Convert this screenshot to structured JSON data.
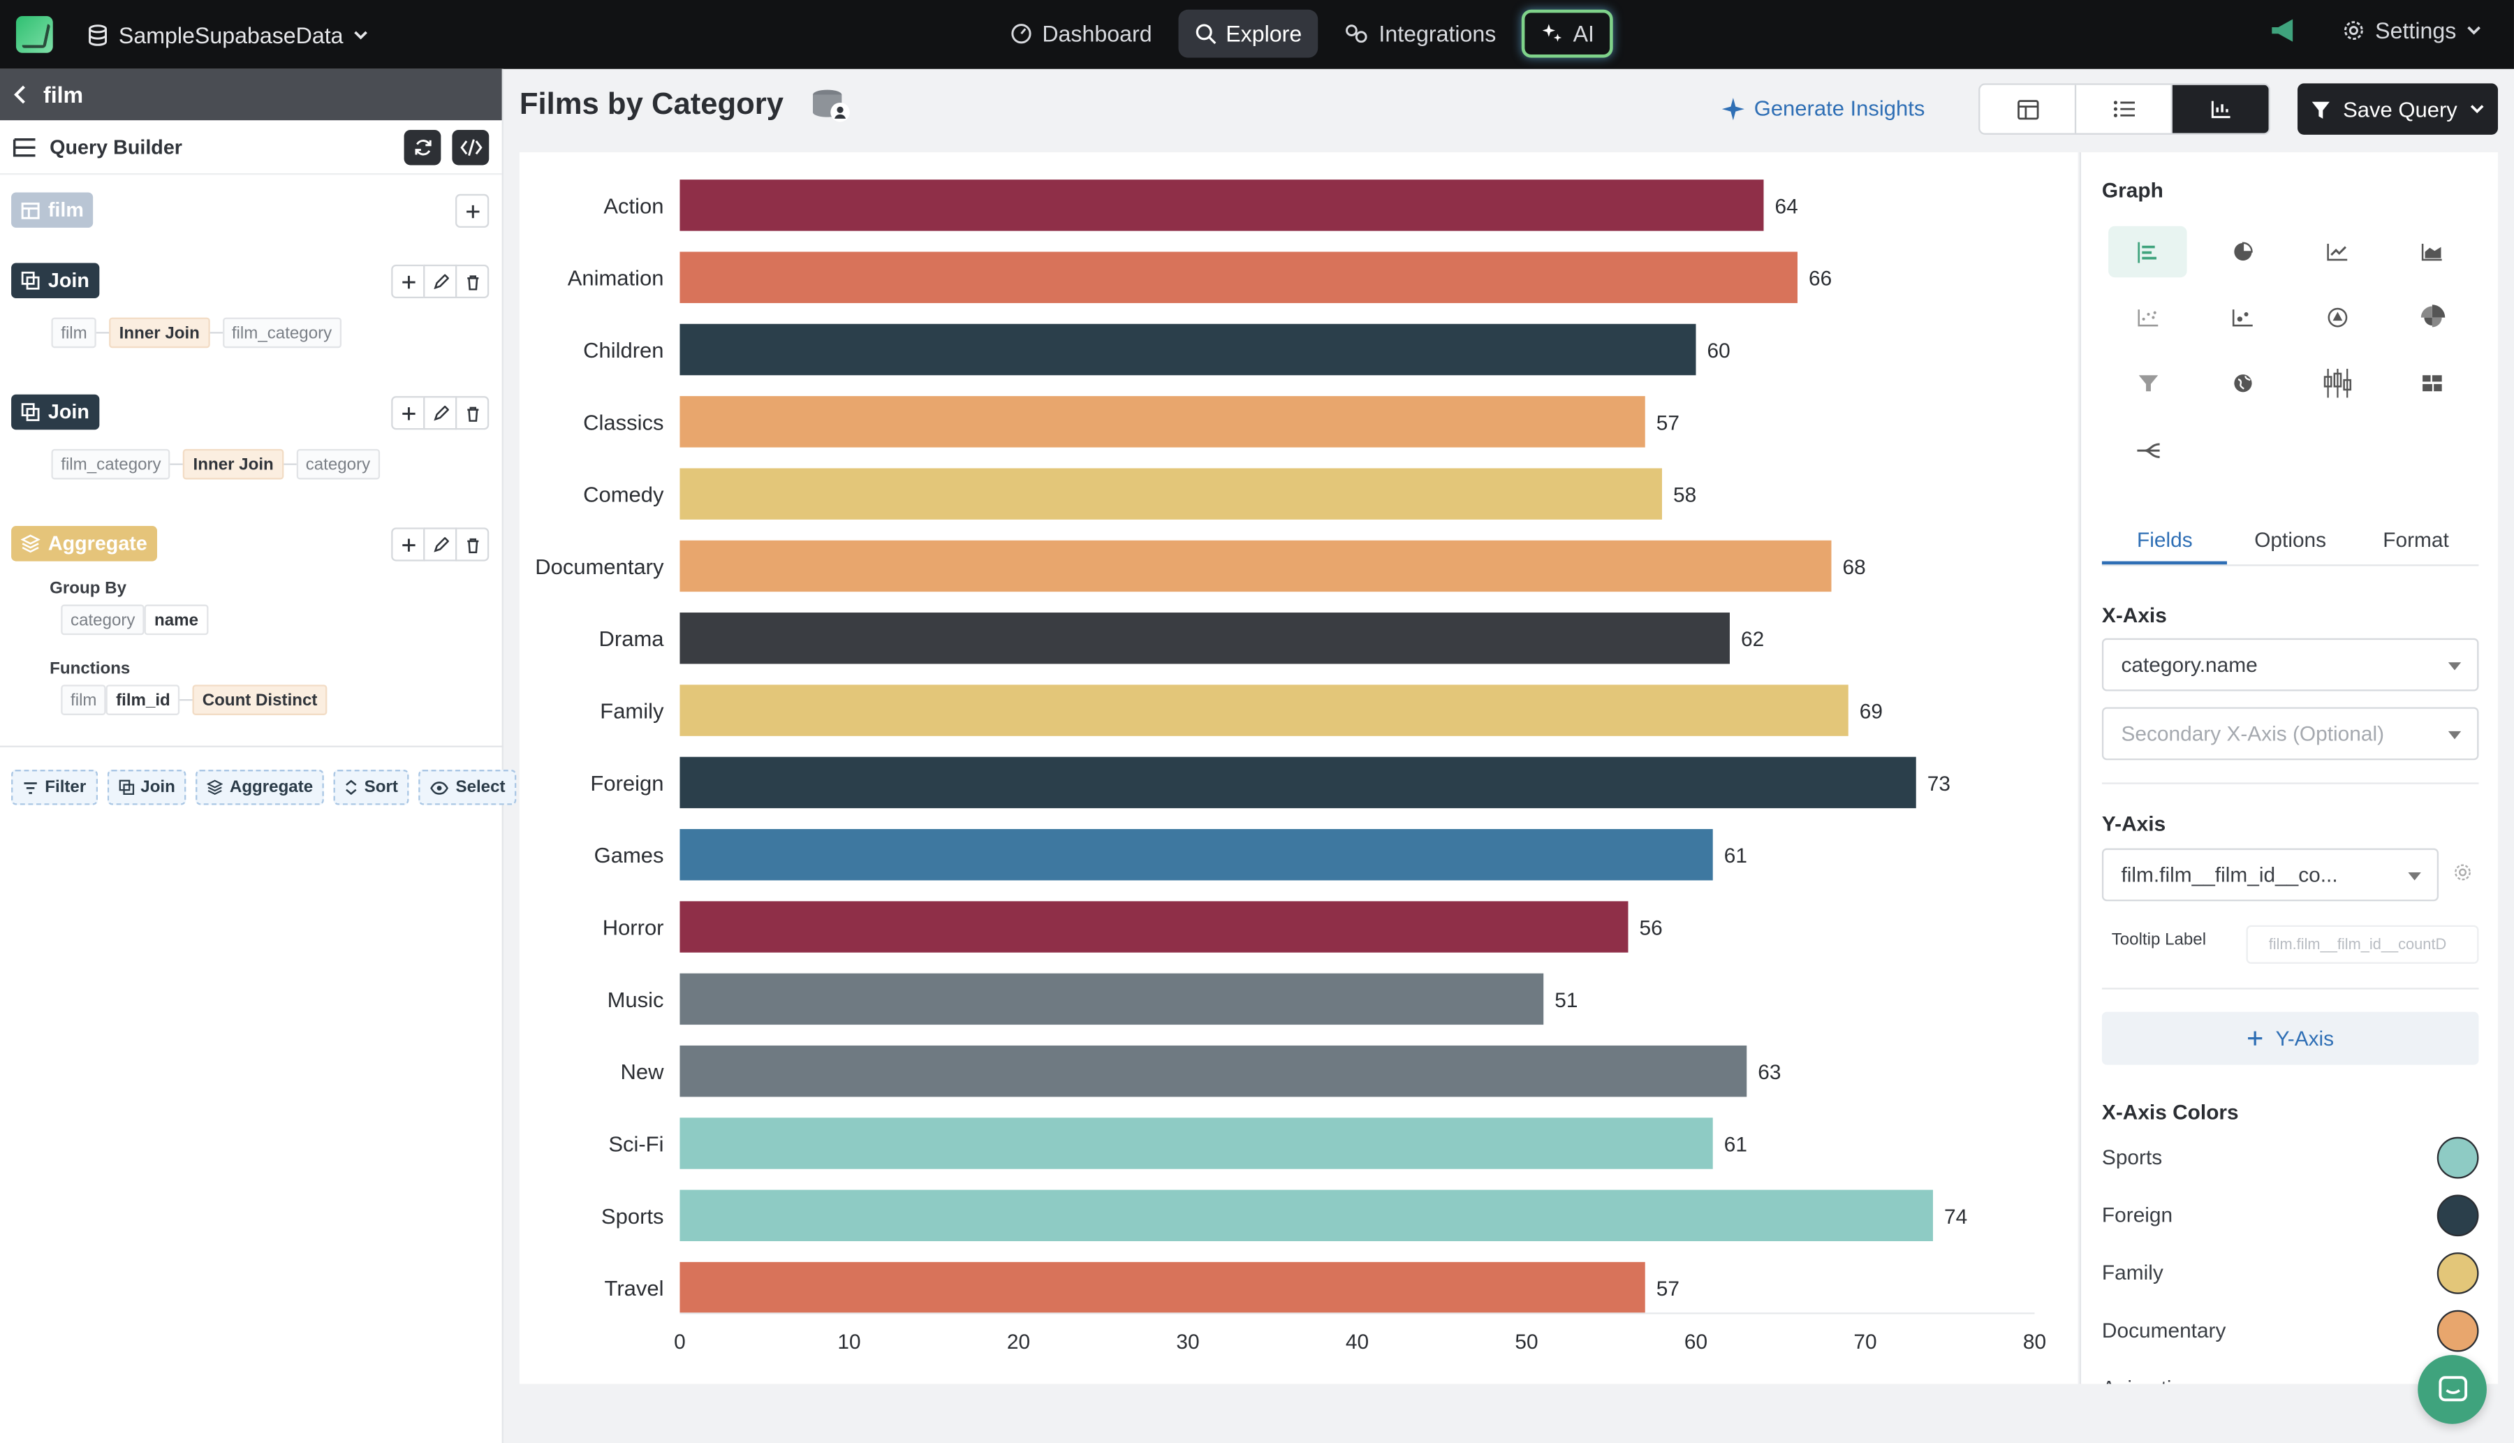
{
  "app": {
    "db_name": "SampleSupabaseData",
    "nav": [
      "Dashboard",
      "Explore",
      "Integrations",
      "AI"
    ],
    "settings": "Settings",
    "accent": "#3fa37d"
  },
  "left": {
    "back_label": "film",
    "query_builder": "Query Builder",
    "table_tag": "film",
    "join1": {
      "label": "Join",
      "left": "film",
      "type": "Inner Join",
      "right": "film_category"
    },
    "join2": {
      "label": "Join",
      "left": "film_category",
      "type": "Inner Join",
      "right": "category"
    },
    "aggregate": {
      "label": "Aggregate",
      "group_by_label": "Group By",
      "group_table": "category",
      "group_field": "name",
      "functions_label": "Functions",
      "fn_table": "film",
      "fn_field": "film_id",
      "fn_type": "Count Distinct"
    },
    "actions": [
      "Filter",
      "Join",
      "Aggregate",
      "Sort",
      "Select"
    ]
  },
  "main": {
    "title": "Films by Category",
    "generate_insights": "Generate Insights",
    "save_query": "Save Query"
  },
  "chart_data": {
    "type": "bar",
    "orientation": "horizontal",
    "categories": [
      "Action",
      "Animation",
      "Children",
      "Classics",
      "Comedy",
      "Documentary",
      "Drama",
      "Family",
      "Foreign",
      "Games",
      "Horror",
      "Music",
      "New",
      "Sci-Fi",
      "Sports",
      "Travel"
    ],
    "values": [
      64,
      66,
      60,
      57,
      58,
      68,
      62,
      69,
      73,
      61,
      56,
      51,
      63,
      61,
      74,
      57
    ],
    "colors": [
      "#8f2f48",
      "#d8735a",
      "#2b3f4b",
      "#e8a66d",
      "#e3c679",
      "#e8a66d",
      "#3a3d42",
      "#e3c679",
      "#2b3f4b",
      "#3e78a0",
      "#8f2f48",
      "#6f7a82",
      "#6f7a82",
      "#8ecbc4",
      "#8ecbc4",
      "#d8735a"
    ],
    "xlim": [
      0,
      80
    ],
    "xticks": [
      0,
      10,
      20,
      30,
      40,
      50,
      60,
      70,
      80
    ],
    "grid": false
  },
  "config": {
    "graph_label": "Graph",
    "tabs": [
      "Fields",
      "Options",
      "Format"
    ],
    "x_axis_label": "X-Axis",
    "x_axis_value": "category.name",
    "secondary_x_placeholder": "Secondary X-Axis (Optional)",
    "y_axis_label": "Y-Axis",
    "y_axis_value": "film.film__film_id__co...",
    "tooltip_label": "Tooltip Label",
    "tooltip_placeholder": "film.film__film_id__countD",
    "add_y_axis": "Y-Axis",
    "x_axis_colors_label": "X-Axis Colors",
    "color_items": [
      {
        "name": "Sports",
        "color": "#8ecbc4"
      },
      {
        "name": "Foreign",
        "color": "#2b3f4b"
      },
      {
        "name": "Family",
        "color": "#e3c679"
      },
      {
        "name": "Documentary",
        "color": "#e8a66d"
      },
      {
        "name": "Animation",
        "color": "#d8735a"
      }
    ]
  }
}
